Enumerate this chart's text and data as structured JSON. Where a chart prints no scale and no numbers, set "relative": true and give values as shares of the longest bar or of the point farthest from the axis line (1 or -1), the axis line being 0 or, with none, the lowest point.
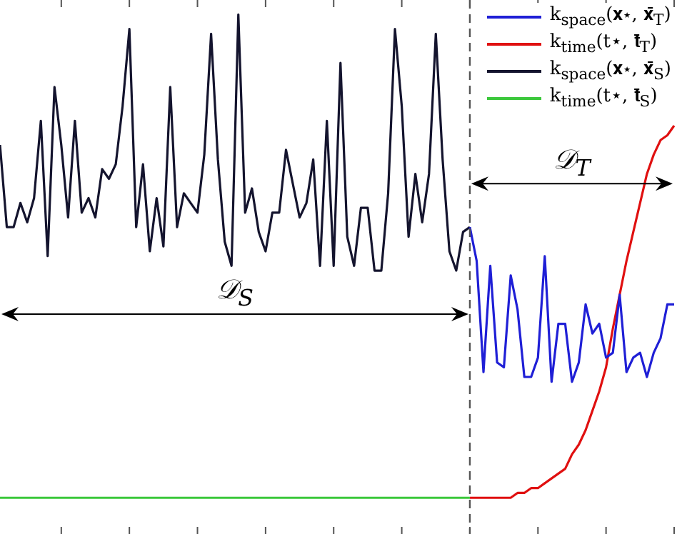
{
  "chart_data": {
    "type": "line",
    "relative": true,
    "legend": "top right",
    "marker": "none",
    "line_style": "solid",
    "categories": [
      null,
      null,
      null,
      null,
      null,
      null,
      null,
      null,
      null,
      null,
      null,
      null,
      null,
      null,
      null,
      null,
      null,
      null,
      null,
      null,
      null,
      null,
      null,
      null,
      null,
      null,
      null,
      null,
      null,
      null,
      null,
      null,
      null,
      null,
      null,
      null,
      null,
      null,
      null,
      null,
      null,
      null,
      null,
      null,
      null,
      null,
      null,
      null,
      null,
      null,
      null,
      null,
      null,
      null,
      null,
      null,
      null,
      null,
      null,
      null,
      null,
      null,
      null,
      null,
      null,
      null,
      null,
      null,
      null,
      null,
      null,
      null,
      null,
      null,
      null,
      null,
      null,
      null,
      null,
      null,
      null,
      null,
      null,
      null,
      null,
      null,
      null,
      null,
      null,
      null,
      null,
      null,
      null,
      null,
      null,
      null,
      null,
      null,
      null,
      null
    ],
    "series": [
      {
        "name": "k$_{space}$(𝐱⋆, 𝐱̄$_{T}$)",
        "color": "#1f1fd6",
        "values": [
          null,
          null,
          null,
          null,
          null,
          null,
          null,
          null,
          null,
          null,
          null,
          null,
          null,
          null,
          null,
          null,
          null,
          null,
          null,
          null,
          null,
          null,
          null,
          null,
          null,
          null,
          null,
          null,
          null,
          null,
          null,
          null,
          null,
          null,
          null,
          null,
          null,
          null,
          null,
          null,
          null,
          null,
          null,
          null,
          null,
          null,
          null,
          null,
          null,
          null,
          null,
          null,
          null,
          null,
          null,
          null,
          null,
          null,
          null,
          null,
          null,
          null,
          null,
          null,
          null,
          null,
          null,
          null,
          null,
          0.56,
          0.49,
          0.26,
          0.48,
          0.28,
          0.27,
          0.46,
          0.39,
          0.25,
          0.25,
          0.29,
          0.5,
          0.24,
          0.36,
          0.36,
          0.24,
          0.28,
          0.4,
          0.34,
          0.36,
          0.29,
          0.3,
          0.42,
          0.26,
          0.29,
          0.3,
          0.25,
          0.3,
          0.33,
          0.4,
          0.4
        ]
      },
      {
        "name": "k$_{time}$(t⋆, 𝐭̄$_{T}$)",
        "color": "#e01010",
        "values": [
          null,
          null,
          null,
          null,
          null,
          null,
          null,
          null,
          null,
          null,
          null,
          null,
          null,
          null,
          null,
          null,
          null,
          null,
          null,
          null,
          null,
          null,
          null,
          null,
          null,
          null,
          null,
          null,
          null,
          null,
          null,
          null,
          null,
          null,
          null,
          null,
          null,
          null,
          null,
          null,
          null,
          null,
          null,
          null,
          null,
          null,
          null,
          null,
          null,
          null,
          null,
          null,
          null,
          null,
          null,
          null,
          null,
          null,
          null,
          null,
          null,
          null,
          null,
          null,
          null,
          null,
          null,
          null,
          null,
          0,
          0,
          0,
          0,
          0,
          0,
          0,
          0.01,
          0.01,
          0.02,
          0.02,
          0.03,
          0.04,
          0.05,
          0.06,
          0.09,
          0.11,
          0.14,
          0.18,
          0.22,
          0.27,
          0.35,
          0.42,
          0.49,
          0.55,
          0.61,
          0.67,
          0.71,
          0.74,
          0.75,
          0.77
        ]
      },
      {
        "name": "k$_{space}$(𝐱⋆, 𝐱̄$_{S}$)",
        "color": "#14142e",
        "values": [
          0.73,
          0.56,
          0.56,
          0.61,
          0.57,
          0.62,
          0.78,
          0.5,
          0.85,
          0.73,
          0.58,
          0.78,
          0.59,
          0.62,
          0.58,
          0.68,
          0.66,
          0.69,
          0.81,
          0.97,
          0.56,
          0.69,
          0.51,
          0.62,
          0.52,
          0.85,
          0.56,
          0.63,
          0.61,
          0.59,
          0.71,
          0.96,
          0.7,
          0.53,
          0.48,
          1.0,
          0.59,
          0.64,
          0.55,
          0.51,
          0.59,
          0.59,
          0.72,
          0.65,
          0.58,
          0.61,
          0.7,
          0.48,
          0.78,
          0.48,
          0.9,
          0.54,
          0.48,
          0.6,
          0.6,
          0.47,
          0.47,
          0.63,
          0.97,
          0.81,
          0.54,
          0.67,
          0.57,
          0.67,
          0.96,
          0.7,
          0.51,
          0.47,
          0.55,
          0.56,
          null,
          null,
          null,
          null,
          null,
          null,
          null,
          null,
          null,
          null,
          null,
          null,
          null,
          null,
          null,
          null,
          null,
          null,
          null,
          null,
          null,
          null,
          null,
          null,
          null,
          null,
          null,
          null,
          null,
          null
        ]
      },
      {
        "name": "k$_{time}$(t⋆, 𝐭̄$_{S}$)",
        "color": "#3cc83c",
        "values": [
          0,
          0,
          0,
          0,
          0,
          0,
          0,
          0,
          0,
          0,
          0,
          0,
          0,
          0,
          0,
          0,
          0,
          0,
          0,
          0,
          0,
          0,
          0,
          0,
          0,
          0,
          0,
          0,
          0,
          0,
          0,
          0,
          0,
          0,
          0,
          0,
          0,
          0,
          0,
          0,
          0,
          0,
          0,
          0,
          0,
          0,
          0,
          0,
          0,
          0,
          0,
          0,
          0,
          0,
          0,
          0,
          0,
          0,
          0,
          0,
          0,
          0,
          0,
          0,
          0,
          0,
          0,
          0,
          0,
          0,
          null,
          null,
          null,
          null,
          null,
          null,
          null,
          null,
          null,
          null,
          null,
          null,
          null,
          null,
          null,
          null,
          null,
          null,
          null,
          null,
          null,
          null,
          null,
          null,
          null,
          null,
          null,
          null,
          null,
          null
        ]
      }
    ],
    "annotations": [
      "𝒟$_{S}$",
      "𝒟$_{T}$"
    ]
  }
}
